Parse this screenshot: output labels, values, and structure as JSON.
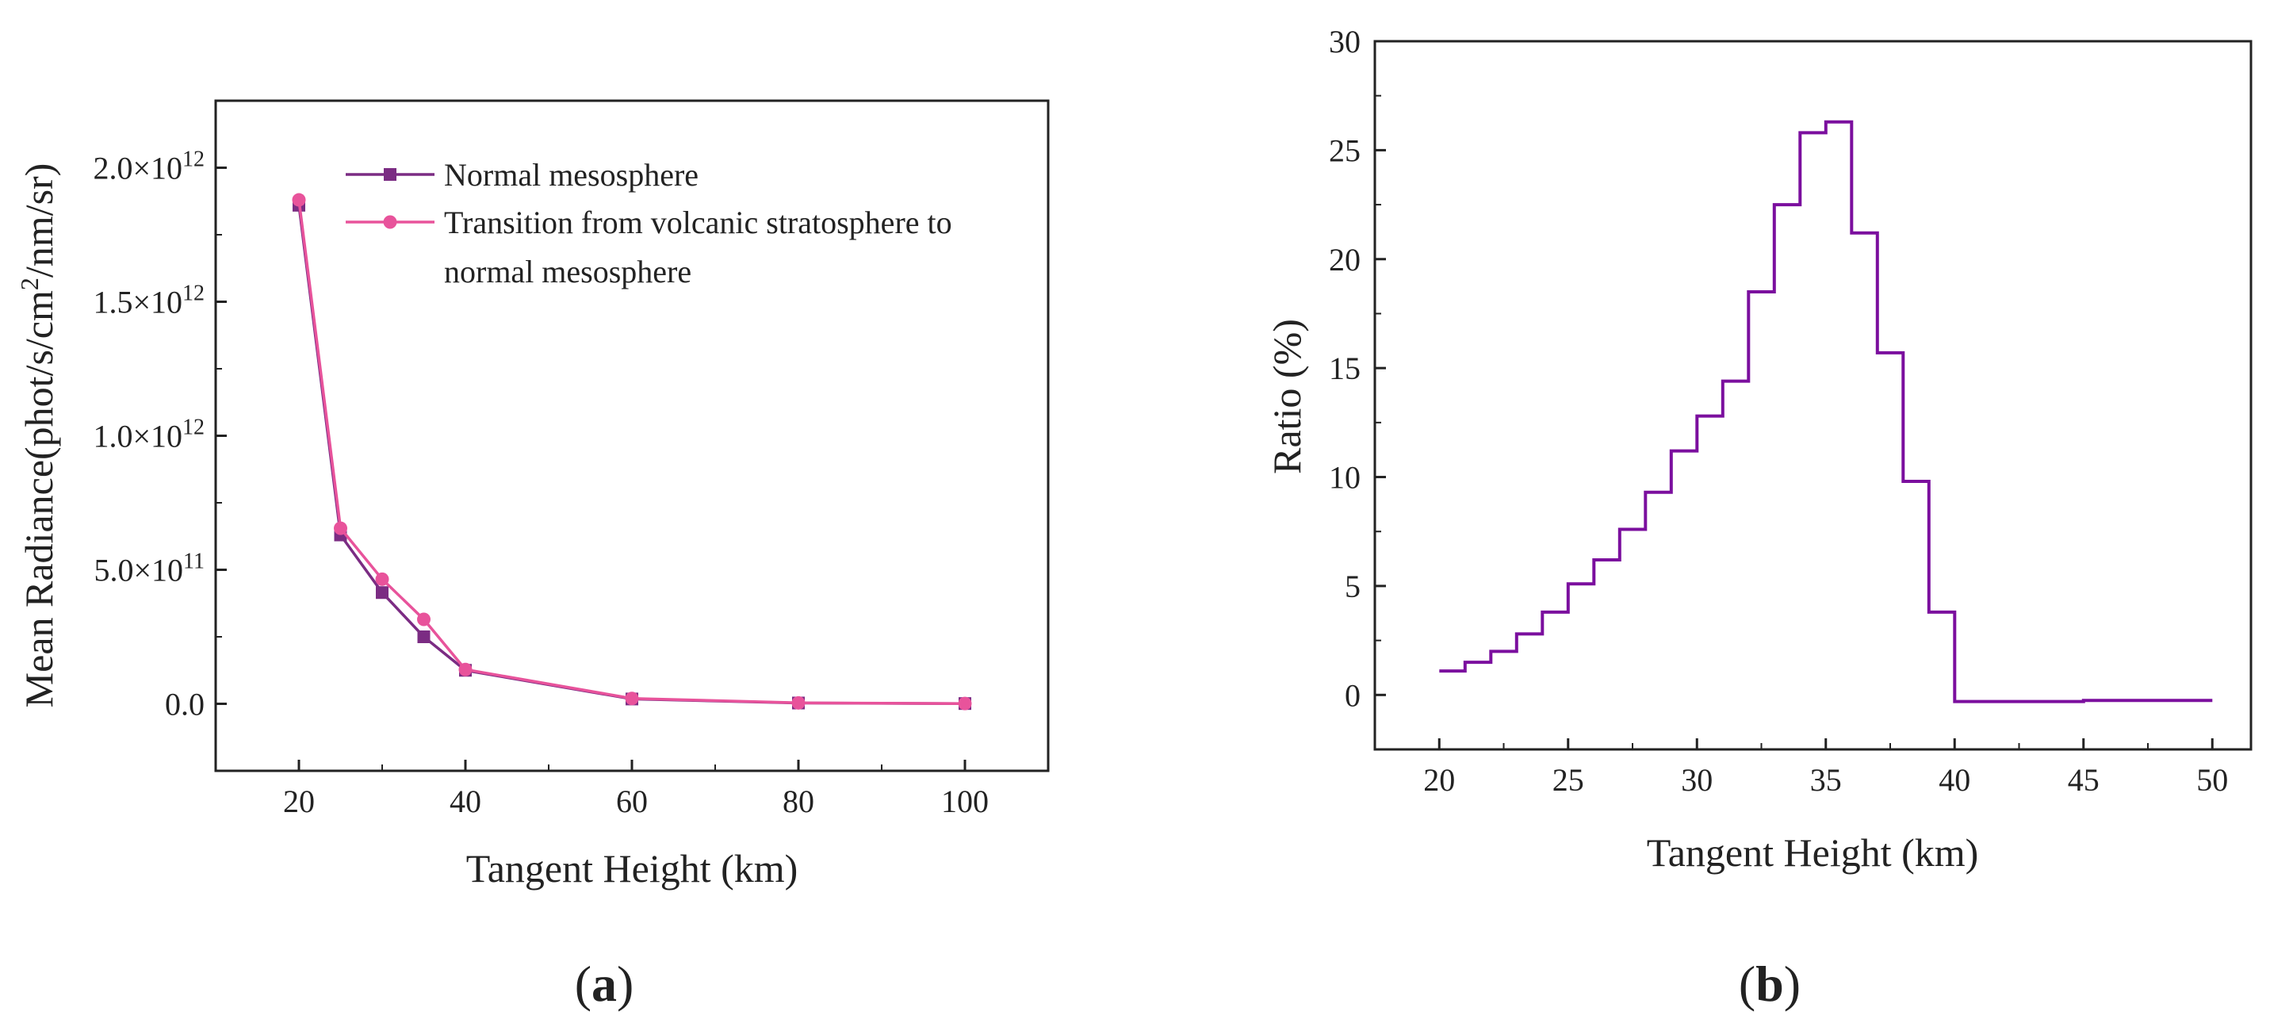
{
  "chart_data": [
    {
      "type": "line",
      "panel_label": "a",
      "xlabel": "Tangent Height (km)",
      "ylabel_main": "Mean Radiance(phot/s/cm",
      "ylabel_sup": "2",
      "ylabel_tail": "/nm/sr)",
      "xlim": [
        10,
        110
      ],
      "ylim": [
        -250000000000.0,
        2250000000000.0
      ],
      "xticks": [
        20,
        40,
        60,
        80,
        100
      ],
      "yticks": [
        {
          "value": 0,
          "label": "0.0"
        },
        {
          "value": 500000000000.0,
          "mantissa": "5.0×10",
          "exp": "11"
        },
        {
          "value": 1000000000000.0,
          "mantissa": "1.0×10",
          "exp": "12"
        },
        {
          "value": 1500000000000.0,
          "mantissa": "1.5×10",
          "exp": "12"
        },
        {
          "value": 2000000000000.0,
          "mantissa": "2.0×10",
          "exp": "12"
        }
      ],
      "grid": false,
      "legend_position": "top-right",
      "x": [
        20,
        25,
        30,
        35,
        40,
        60,
        80,
        100
      ],
      "series": [
        {
          "name_lines": [
            "Normal mesosphere"
          ],
          "marker": "square",
          "color": "#7B2C83",
          "values": [
            1860000000000.0,
            630000000000.0,
            415000000000.0,
            250000000000.0,
            125000000000.0,
            18000000000.0,
            3000000000.0,
            1000000000.0
          ]
        },
        {
          "name_lines": [
            "Transition from volcanic stratosphere to",
            "normal mesosphere"
          ],
          "marker": "circle",
          "color": "#E8539B",
          "values": [
            1880000000000.0,
            655000000000.0,
            465000000000.0,
            315000000000.0,
            128000000000.0,
            20000000000.0,
            3500000000.0,
            1000000000.0
          ]
        }
      ]
    },
    {
      "type": "line",
      "style": "step",
      "panel_label": "b",
      "xlabel": "Tangent Height (km)",
      "ylabel": "Ratio (%)",
      "xlim": [
        17.5,
        51.5
      ],
      "ylim": [
        -2.5,
        30
      ],
      "xticks": [
        20,
        25,
        30,
        35,
        40,
        45,
        50
      ],
      "yticks": [
        0,
        5,
        10,
        15,
        20,
        25,
        30
      ],
      "grid": false,
      "color": "#7B0F9E",
      "steps": [
        {
          "x0": 20,
          "x1": 21,
          "y": 1.1
        },
        {
          "x0": 21,
          "x1": 22,
          "y": 1.5
        },
        {
          "x0": 22,
          "x1": 23,
          "y": 2.0
        },
        {
          "x0": 23,
          "x1": 24,
          "y": 2.8
        },
        {
          "x0": 24,
          "x1": 25,
          "y": 3.8
        },
        {
          "x0": 25,
          "x1": 26,
          "y": 5.1
        },
        {
          "x0": 26,
          "x1": 27,
          "y": 6.2
        },
        {
          "x0": 27,
          "x1": 28,
          "y": 7.6
        },
        {
          "x0": 28,
          "x1": 29,
          "y": 9.3
        },
        {
          "x0": 29,
          "x1": 30,
          "y": 11.2
        },
        {
          "x0": 30,
          "x1": 31,
          "y": 12.8
        },
        {
          "x0": 31,
          "x1": 32,
          "y": 14.4
        },
        {
          "x0": 32,
          "x1": 33,
          "y": 18.5
        },
        {
          "x0": 33,
          "x1": 34,
          "y": 22.5
        },
        {
          "x0": 34,
          "x1": 35,
          "y": 25.8
        },
        {
          "x0": 35,
          "x1": 36,
          "y": 26.3
        },
        {
          "x0": 36,
          "x1": 37,
          "y": 21.2
        },
        {
          "x0": 37,
          "x1": 38,
          "y": 15.7
        },
        {
          "x0": 38,
          "x1": 39,
          "y": 9.8
        },
        {
          "x0": 39,
          "x1": 40,
          "y": 3.8
        },
        {
          "x0": 40,
          "x1": 45,
          "y": -0.3
        },
        {
          "x0": 45,
          "x1": 50,
          "y": -0.25
        }
      ]
    }
  ]
}
